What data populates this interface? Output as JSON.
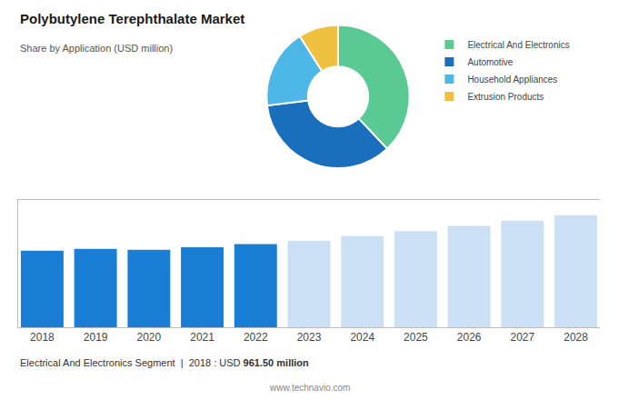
{
  "chart_data": [
    {
      "type": "donut",
      "title": "Polybutylene Terephthalate Market",
      "subtitle": "Share by Application (USD million)",
      "categories": [
        "Electrical And Electronics",
        "Automotive",
        "Household Appliances",
        "Extrusion Products"
      ],
      "values": [
        38,
        35,
        18,
        9
      ],
      "colors": [
        "#5ac994",
        "#1a6fbd",
        "#4db8e8",
        "#f0c040"
      ],
      "legend": "right"
    },
    {
      "type": "bar",
      "x": [
        2018,
        2019,
        2020,
        2021,
        2022,
        2023,
        2024,
        2025,
        2026,
        2027,
        2028
      ],
      "values": [
        961.5,
        985.0,
        975.0,
        1005.0,
        1045.0,
        1090.0,
        1145.0,
        1210.0,
        1275.0,
        1340.0,
        1410.0
      ],
      "colors": [
        "#1a7fd4",
        "#1a7fd4",
        "#1a7fd4",
        "#1a7fd4",
        "#1a7fd4",
        "#cce0f5",
        "#cce0f5",
        "#cce0f5",
        "#cce0f5",
        "#cce0f5",
        "#cce0f5"
      ],
      "xlim": [
        2017.55,
        2028.45
      ],
      "xticks": [
        2018,
        2019,
        2020,
        2021,
        2022,
        2023,
        2024,
        2025,
        2026,
        2027,
        2028
      ],
      "ylim": [
        0,
        1600
      ],
      "yticks": [],
      "grid": false,
      "tick_labels": "x",
      "annotations": [
        "Electrical And Electronics Segment",
        "|",
        "2018 : USD ",
        "961.50 million",
        "www.technavio.com"
      ]
    }
  ]
}
